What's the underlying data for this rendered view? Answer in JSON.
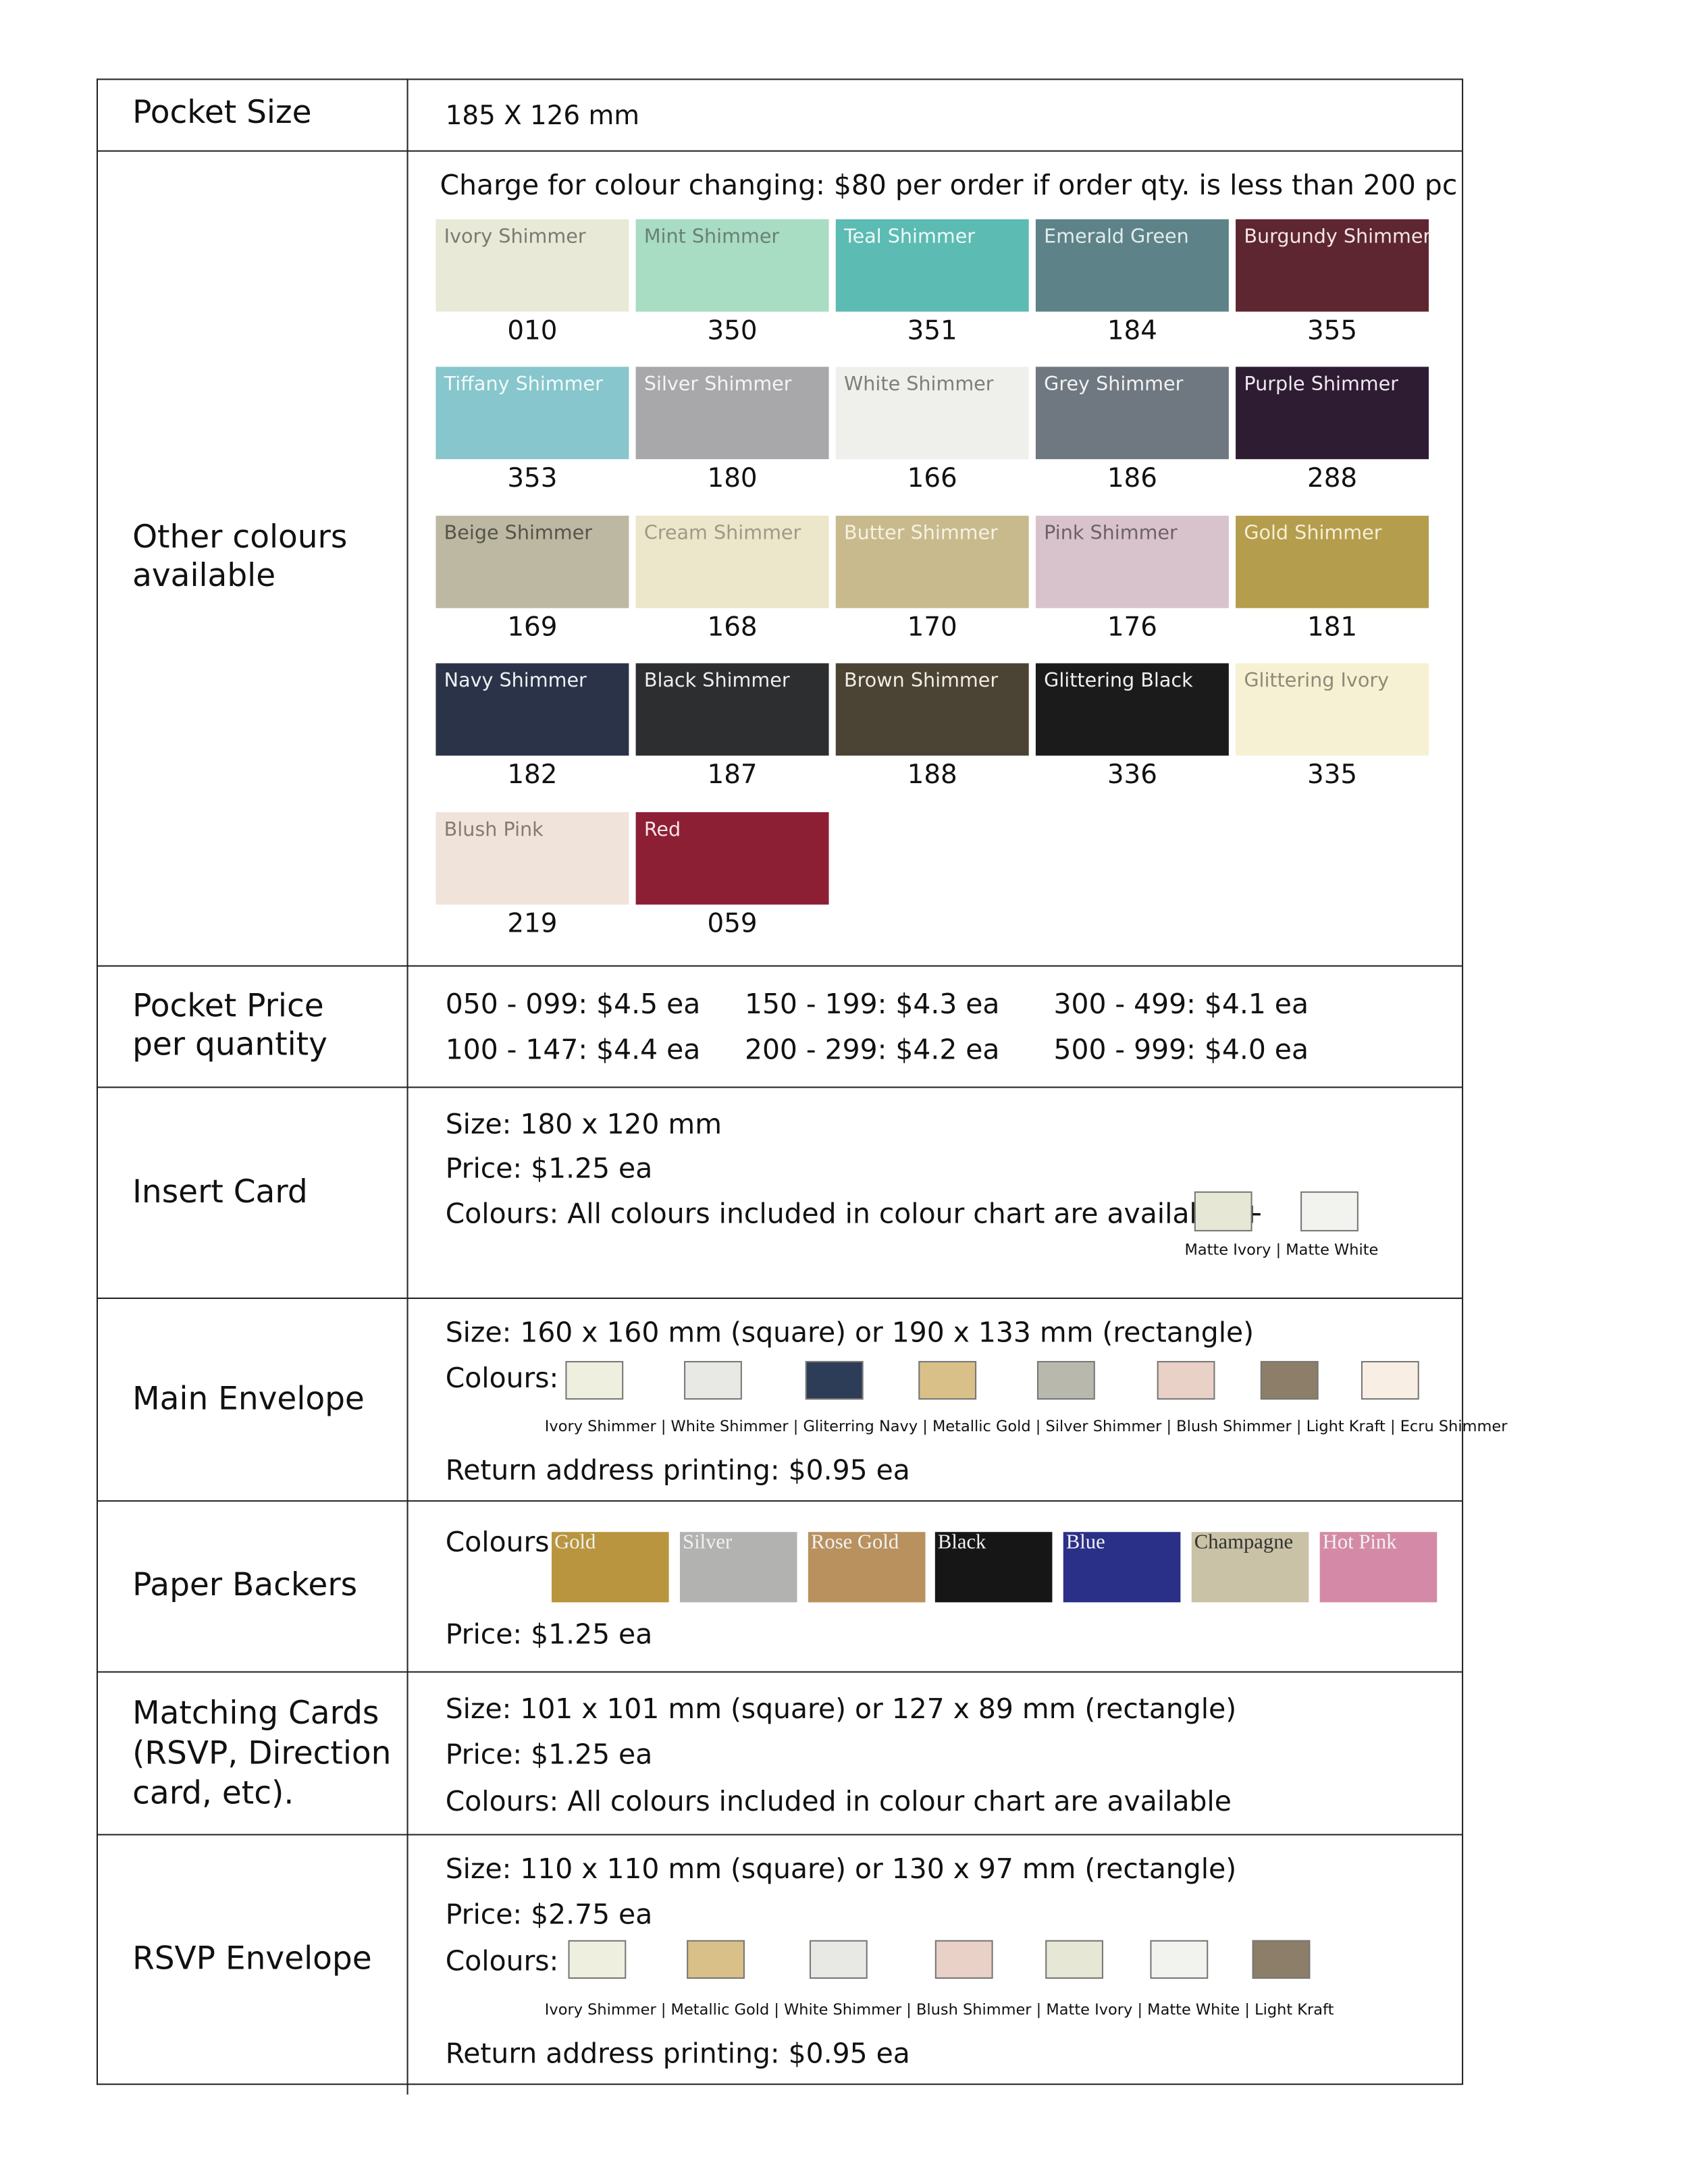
{
  "pocket_size": {
    "label": [
      "Pocket Size"
    ],
    "value": "185 X 126 mm"
  },
  "other_colours": {
    "label": [
      "Other colours",
      "available"
    ],
    "note": "Charge for colour changing: $80 per order if order qty. is less than 200 pc",
    "swatches": [
      {
        "name": "Ivory Shimmer",
        "code": "010",
        "color": "#e8e9d6",
        "text": "#7a7a72"
      },
      {
        "name": "Mint Shimmer",
        "code": "350",
        "color": "#a8dcc3",
        "text": "#6a7f76"
      },
      {
        "name": "Teal Shimmer",
        "code": "351",
        "color": "#5cbbb3",
        "text": "#eefaf8"
      },
      {
        "name": "Emerald Green",
        "code": "184",
        "color": "#5d8388",
        "text": "#e3ecec"
      },
      {
        "name": "Burgundy Shimmer",
        "code": "355",
        "color": "#5e2630",
        "text": "#f3e6e8"
      },
      {
        "name": "Tiffany Shimmer",
        "code": "353",
        "color": "#86c6cc",
        "text": "#f2fafb"
      },
      {
        "name": "Silver Shimmer",
        "code": "180",
        "color": "#a8a8aa",
        "text": "#f4f4f4"
      },
      {
        "name": "White Shimmer",
        "code": "166",
        "color": "#efefeb",
        "text": "#7d7d7b"
      },
      {
        "name": "Grey Shimmer",
        "code": "186",
        "color": "#6f7780",
        "text": "#f0f2f4"
      },
      {
        "name": "Purple Shimmer",
        "code": "288",
        "color": "#2e1c33",
        "text": "#efe8f1"
      },
      {
        "name": "Beige Shimmer",
        "code": "169",
        "color": "#bdb8a2",
        "text": "#55534a"
      },
      {
        "name": "Cream Shimmer",
        "code": "168",
        "color": "#ece6ca",
        "text": "#9d9a88"
      },
      {
        "name": "Butter Shimmer",
        "code": "170",
        "color": "#c8ba8d",
        "text": "#f7f2e2"
      },
      {
        "name": "Pink Shimmer",
        "code": "176",
        "color": "#d8c3cd",
        "text": "#6f6168"
      },
      {
        "name": "Gold Shimmer",
        "code": "181",
        "color": "#b49d4c",
        "text": "#f6efd6"
      },
      {
        "name": "Navy Shimmer",
        "code": "182",
        "color": "#2b3348",
        "text": "#eef0f5"
      },
      {
        "name": "Black Shimmer",
        "code": "187",
        "color": "#2c2e30",
        "text": "#eeeeee"
      },
      {
        "name": "Brown Shimmer",
        "code": "188",
        "color": "#4b4333",
        "text": "#f1ede4"
      },
      {
        "name": "Glittering Black",
        "code": "336",
        "color": "#1b1b1b",
        "text": "#f0f0f0"
      },
      {
        "name": "Glittering Ivory",
        "code": "335",
        "color": "#f6f1d3",
        "text": "#8e8a78"
      },
      {
        "name": "Blush Pink",
        "code": "219",
        "color": "#f0e3da",
        "text": "#857a74"
      },
      {
        "name": "Red",
        "code": "059",
        "color": "#8d1f35",
        "text": "#f6e4e8"
      }
    ]
  },
  "pocket_price": {
    "label": [
      "Pocket Price",
      "per quantity"
    ],
    "tiers": [
      "050 - 099: $4.5 ea",
      "100 - 147: $4.4 ea",
      "150 - 199: $4.3 ea",
      "200 - 299: $4.2 ea",
      "300 - 499: $4.1 ea",
      "500 - 999: $4.0 ea"
    ]
  },
  "insert_card": {
    "label": [
      "Insert Card"
    ],
    "lines": [
      "Size: 180 x 120 mm",
      "Price: $1.25 ea",
      "Colours: All colours included in colour chart are available +"
    ],
    "swatch_colors": [
      "#e6e7d4",
      "#f2f2ef"
    ],
    "caption": "Matte Ivory | Matte White"
  },
  "main_envelope": {
    "label": [
      "Main Envelope"
    ],
    "size": "Size: 160 x 160 mm (square) or 190 x 133 mm (rectangle)",
    "colours_label": "Colours:",
    "swatch_colors": [
      "#efefe0",
      "#e8e8e4",
      "#2e3d57",
      "#d8c088",
      "#b8b9ac",
      "#e9d1c8",
      "#8c7e69",
      "#f8eee3"
    ],
    "caption": "Ivory Shimmer | White Shimmer | Gliterring Navy | Metallic Gold |  Silver Shimmer | Blush Shimmer | Light Kraft | Ecru Shimmer",
    "return": "Return address printing: $0.95 ea"
  },
  "paper_backers": {
    "label": [
      "Paper Backers"
    ],
    "colours_label": "Colours:",
    "swatches": [
      {
        "name": "Gold",
        "color": "#b8953e"
      },
      {
        "name": "Silver",
        "color": "#b2b2b0"
      },
      {
        "name": "Rose Gold",
        "color": "#b8915e"
      },
      {
        "name": "Black",
        "color": "#161616"
      },
      {
        "name": "Blue",
        "color": "#2a3088"
      },
      {
        "name": "Champagne",
        "color": "#c9c2a6"
      },
      {
        "name": "Hot Pink",
        "color": "#d48aa6"
      }
    ],
    "price": "Price: $1.25 ea"
  },
  "matching_cards": {
    "label": [
      "Matching Cards",
      "(RSVP, Direction",
      "card, etc)."
    ],
    "lines": [
      "Size:  101 x 101 mm (square) or 127 x 89 mm (rectangle)",
      "Price: $1.25 ea",
      "Colours: All colours included in colour chart are available"
    ]
  },
  "rsvp_envelope": {
    "label": [
      "RSVP Envelope"
    ],
    "size": "Size: 110 x 110 mm (square) or 130 x 97 mm (rectangle)",
    "price": "Price: $2.75 ea",
    "colours_label": "Colours:",
    "swatch_colors": [
      "#efefe0",
      "#d8c088",
      "#e8e8e4",
      "#e9d1c8",
      "#e6e7d4",
      "#f2f2ef",
      "#8c7e69"
    ],
    "caption": "Ivory Shimmer | Metallic Gold | White Shimmer | Blush Shimmer | Matte Ivory | Matte White | Light Kraft",
    "return": "Return address printing: $0.95 ea"
  }
}
